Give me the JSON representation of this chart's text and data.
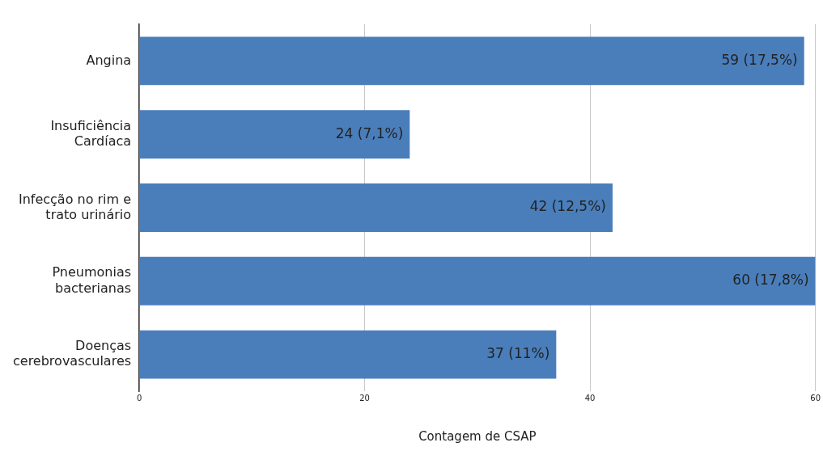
{
  "chart_data": {
    "type": "bar",
    "orientation": "horizontal",
    "xlabel": "Contagem de CSAP",
    "categories": [
      "Angina",
      "Insuficiência Cardíaca",
      "Infecção no rim e trato urinário",
      "Pneumonias bacterianas",
      "Doenças cerebrovasculares"
    ],
    "values": [
      59,
      24,
      42,
      60,
      37
    ],
    "value_labels": [
      "59 (17,5%)",
      "24 (7,1%)",
      "42 (12,5%)",
      "60 (17,8%)",
      "37 (11%)"
    ],
    "color": "#4a7ebb",
    "xlim": [
      0,
      60
    ],
    "xticks": [
      0,
      20,
      40,
      60
    ],
    "grid": "x",
    "legend": false
  }
}
